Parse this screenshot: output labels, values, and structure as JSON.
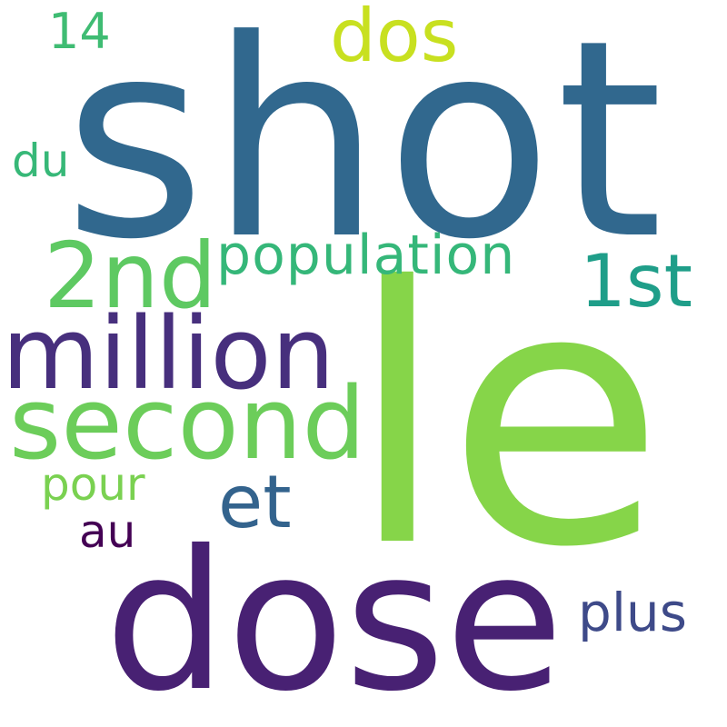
{
  "words": {
    "shot": {
      "text": "shot",
      "color": "#31688e"
    },
    "le": {
      "text": "le",
      "color": "#86d549"
    },
    "dose": {
      "text": "dose",
      "color": "#482173"
    },
    "second": {
      "text": "second",
      "color": "#6ccd5a"
    },
    "million": {
      "text": "million",
      "color": "#472f7d"
    },
    "2nd": {
      "text": "2nd",
      "color": "#5ec962"
    },
    "population": {
      "text": "population",
      "color": "#35b779"
    },
    "1st": {
      "text": "1st",
      "color": "#1f9e89"
    },
    "dos": {
      "text": "dos",
      "color": "#c8e020"
    },
    "et": {
      "text": "et",
      "color": "#33638d"
    },
    "plus": {
      "text": "plus",
      "color": "#3e4a89"
    },
    "pour": {
      "text": "pour",
      "color": "#7ad151"
    },
    "au": {
      "text": "au",
      "color": "#440154"
    },
    "14": {
      "text": "14",
      "color": "#3fbc73"
    },
    "du": {
      "text": "du",
      "color": "#37b878"
    }
  }
}
